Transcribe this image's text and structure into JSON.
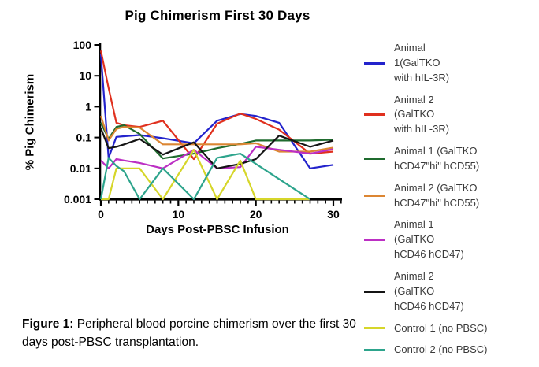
{
  "chart_data": {
    "type": "line",
    "title": "Pig Chimerism First 30 Days",
    "xlabel": "Days Post-PBSC Infusion",
    "ylabel": "% Pig Chimerism",
    "x_scale": "linear",
    "y_scale": "log10",
    "xlim": [
      0,
      30
    ],
    "ylim": [
      0.001,
      100
    ],
    "grid": false,
    "x_ticks": [
      0,
      10,
      20,
      30
    ],
    "x_tick_labels": [
      "0",
      "10",
      "20",
      "30"
    ],
    "y_ticks": [
      100,
      10,
      1,
      0.1,
      0.01,
      0.001
    ],
    "y_tick_labels": [
      "100",
      "10",
      "1",
      "0.1",
      "0.01",
      "0.001"
    ],
    "days": [
      0,
      1,
      2,
      3,
      5,
      8,
      12,
      15,
      18,
      20,
      23,
      27,
      30
    ],
    "series": [
      {
        "name": "Animal 1 (GalTKO with hIL-3R)",
        "color": "#2323CC",
        "values": [
          50,
          0.022,
          0.105,
          0.11,
          0.12,
          0.095,
          0.065,
          0.35,
          0.58,
          0.5,
          0.3,
          0.01,
          0.013
        ]
      },
      {
        "name": "Animal 2 (GalTKO with hIL-3R)",
        "color": "#E0301E",
        "values": [
          65,
          4,
          0.3,
          0.25,
          0.22,
          0.35,
          0.02,
          0.28,
          0.6,
          0.4,
          0.18,
          0.03,
          0.035
        ]
      },
      {
        "name": "Animal 1 (GalTKO hCD47\"hi\" hCD55)",
        "color": "#1F6B2E",
        "values": [
          0.3,
          0.09,
          0.22,
          0.25,
          0.13,
          0.021,
          0.03,
          0.045,
          0.062,
          0.08,
          0.08,
          0.08,
          0.085
        ]
      },
      {
        "name": "Animal 2 (GalTKO hCD47\"hi\" hCD55)",
        "color": "#DC8633",
        "values": [
          0.5,
          0.08,
          0.19,
          0.22,
          0.21,
          0.06,
          0.06,
          0.06,
          0.06,
          0.065,
          0.035,
          0.035,
          0.047
        ]
      },
      {
        "name": "Animal 1 (GalTKO hCD46 hCD47)",
        "color": "#BC2FC4",
        "values": [
          0.018,
          0.01,
          0.02,
          0.018,
          0.015,
          0.01,
          0.04,
          0.01,
          0.011,
          0.05,
          0.04,
          0.03,
          0.042
        ]
      },
      {
        "name": "Animal 2 (GalTKO hCD46 hCD47)",
        "color": "#141414",
        "values": [
          0.2,
          0.045,
          0.05,
          0.06,
          0.09,
          0.028,
          0.07,
          0.01,
          0.014,
          0.02,
          0.115,
          0.05,
          0.08
        ]
      },
      {
        "name": "Control 1 (no PBSC)",
        "color": "#D6D62A",
        "values": [
          0.001,
          0.001,
          0.01,
          0.01,
          0.01,
          0.001,
          0.04,
          0.001,
          0.018,
          0.001,
          0.001,
          0.001,
          null
        ]
      },
      {
        "name": "Control 2 (no PBSC)",
        "color": "#2DA48C",
        "values": [
          0.001,
          0.022,
          0.012,
          0.008,
          0.001,
          0.01,
          0.001,
          0.022,
          0.03,
          0.014,
          0.0045,
          0.001,
          null
        ]
      }
    ],
    "legend": {
      "position": "right",
      "items": [
        {
          "label": "Animal\n1(GalTKO\nwith hIL-3R)",
          "color": "#2323CC"
        },
        {
          "label": "Animal 2\n(GalTKO\nwith hIL-3R)",
          "color": "#E0301E"
        },
        {
          "label": "Animal 1  (GalTKO\nhCD47\"hi\" hCD55)",
          "color": "#1F6B2E"
        },
        {
          "label": "Animal 2 (GalTKO\nhCD47\"hi\" hCD55)",
          "color": "#DC8633"
        },
        {
          "label": "Animal 1\n(GalTKO\nhCD46 hCD47)",
          "color": "#BC2FC4"
        },
        {
          "label": "Animal 2\n(GalTKO\nhCD46 hCD47)",
          "color": "#141414"
        },
        {
          "label": "Control 1 (no PBSC)",
          "color": "#D6D62A"
        },
        {
          "label": "Control 2 (no PBSC)",
          "color": "#2DA48C"
        }
      ]
    }
  },
  "caption": {
    "label": "Figure 1:",
    "text": "Peripheral blood porcine chimerism over the first 30 days post-PBSC transplantation."
  }
}
